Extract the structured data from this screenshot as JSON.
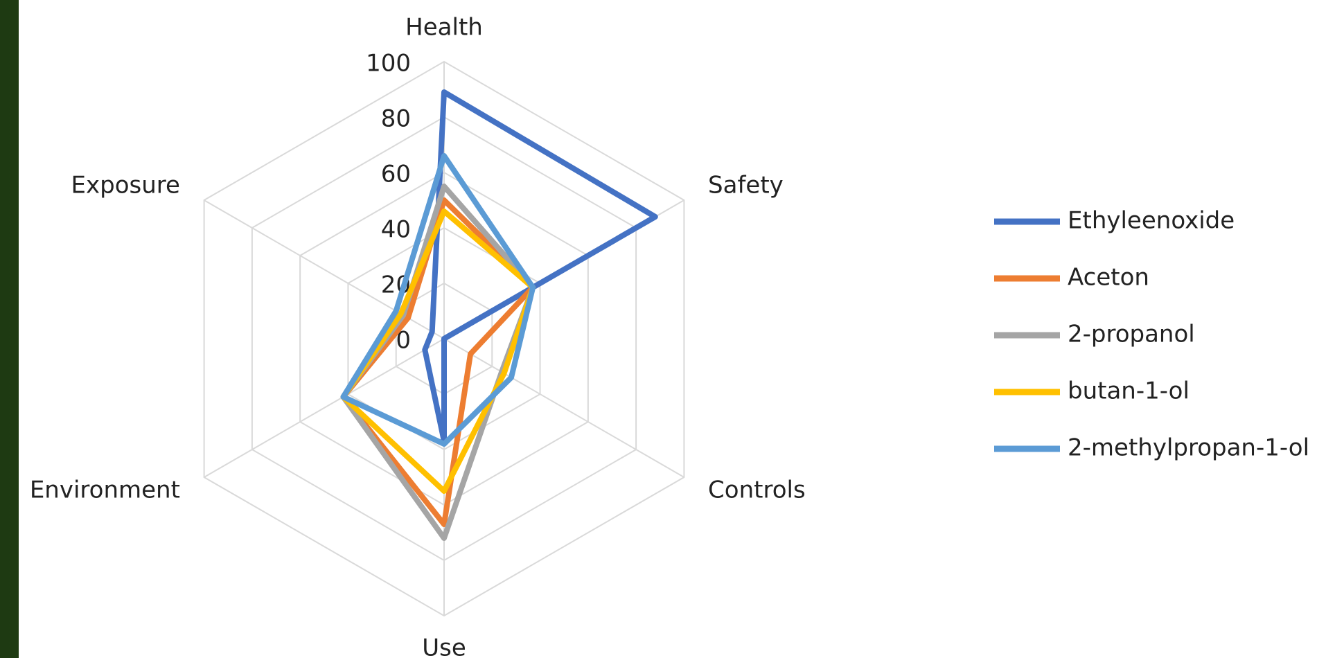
{
  "chart_data": {
    "type": "radar",
    "categories": [
      "Health",
      "Safety",
      "Controls",
      "Use",
      "Environment",
      "Exposure"
    ],
    "ylim": [
      0,
      100
    ],
    "yticks": [
      0,
      20,
      40,
      60,
      80,
      100
    ],
    "grid": true,
    "legend": "right",
    "series": [
      {
        "name": "Ethyleenoxide",
        "color": "#4472c4",
        "values": [
          89,
          88,
          0,
          37,
          8,
          5
        ]
      },
      {
        "name": "Aceton",
        "color": "#ed7d31",
        "values": [
          50,
          37,
          11,
          67,
          42,
          15
        ]
      },
      {
        "name": "2-propanol",
        "color": "#a5a5a5",
        "values": [
          55,
          37,
          24,
          72,
          42,
          17
        ]
      },
      {
        "name": "butan-1-ol",
        "color": "#ffc000",
        "values": [
          46,
          37,
          25,
          55,
          42,
          18
        ]
      },
      {
        "name": "2-methylpropan-1-ol",
        "color": "#5b9bd5",
        "values": [
          66,
          37,
          28,
          38,
          42,
          20
        ]
      }
    ]
  }
}
